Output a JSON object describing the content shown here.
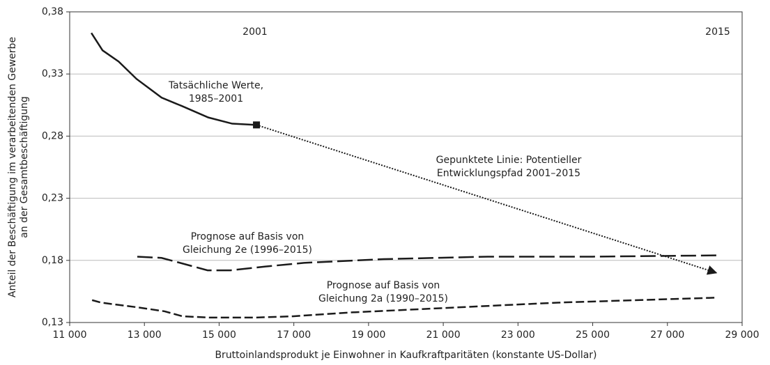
{
  "chart_data": {
    "type": "line",
    "xlabel": "Bruttoinlandsprodukt je Einwohner in Kaufkraftparitäten (konstante US-Dollar)",
    "ylabel": [
      "Anteil der Beschäftigung im verarbeitenden Gewerbe",
      "an der Gesamtbeschäftigung"
    ],
    "xlim": [
      11000,
      29000
    ],
    "xticks": [
      {
        "value": 11000,
        "label": "11 000"
      },
      {
        "value": 13000,
        "label": "13 000"
      },
      {
        "value": 15000,
        "label": "15 000"
      },
      {
        "value": 17000,
        "label": "17 000"
      },
      {
        "value": 19000,
        "label": "19 000"
      },
      {
        "value": 21000,
        "label": "21 000"
      },
      {
        "value": 23000,
        "label": "23 000"
      },
      {
        "value": 25000,
        "label": "25 000"
      },
      {
        "value": 27000,
        "label": "27 000"
      },
      {
        "value": 29000,
        "label": "29 000"
      }
    ],
    "ylim": [
      0.13,
      0.38
    ],
    "yticks": [
      {
        "value": 0.13,
        "label": "0,13"
      },
      {
        "value": 0.18,
        "label": "0,18"
      },
      {
        "value": 0.23,
        "label": "0,23"
      },
      {
        "value": 0.28,
        "label": "0,28"
      },
      {
        "value": 0.33,
        "label": "0,33"
      },
      {
        "value": 0.38,
        "label": "0,38"
      }
    ],
    "grid": true,
    "series": [
      {
        "color": "#1a1a1a",
        "style": "solid",
        "end_marker": "square",
        "x": [
          11580,
          11880,
          12310,
          12790,
          13460,
          14020,
          14710,
          15350,
          16000
        ],
        "values": [
          0.363,
          0.349,
          0.34,
          0.326,
          0.311,
          0.304,
          0.295,
          0.29,
          0.289
        ]
      },
      {
        "color": "#1a1a1a",
        "style": "dotted",
        "end_marker": "arrow",
        "x": [
          16000,
          28310
        ],
        "values": [
          0.289,
          0.17
        ]
      },
      {
        "color": "#1a1a1a",
        "style": "longdash",
        "x": [
          12810,
          13460,
          14690,
          15310,
          16220,
          17270,
          19400,
          22190,
          25000,
          28310
        ],
        "values": [
          0.183,
          0.182,
          0.172,
          0.172,
          0.175,
          0.178,
          0.181,
          0.183,
          0.183,
          0.184
        ]
      },
      {
        "color": "#1a1a1a",
        "style": "dashed",
        "x": [
          11600,
          11840,
          12870,
          13540,
          14020,
          14730,
          15980,
          16970,
          18460,
          21260,
          24060,
          28310
        ],
        "values": [
          0.148,
          0.146,
          0.142,
          0.139,
          0.135,
          0.134,
          0.134,
          0.135,
          0.138,
          0.142,
          0.146,
          0.15
        ]
      }
    ],
    "annotations": [
      [
        "2001"
      ],
      [
        "2015"
      ],
      [
        "Tatsächliche Werte,",
        "1985–2001"
      ],
      [
        "Gepunktete Linie: Potentieller",
        "Entwicklungspfad 2001–2015"
      ],
      [
        "Prognose auf Basis von",
        "Gleichung 2e (1996–2015)"
      ],
      [
        "Prognose auf Basis von",
        "Gleichung 2a (1990–2015)"
      ]
    ]
  }
}
